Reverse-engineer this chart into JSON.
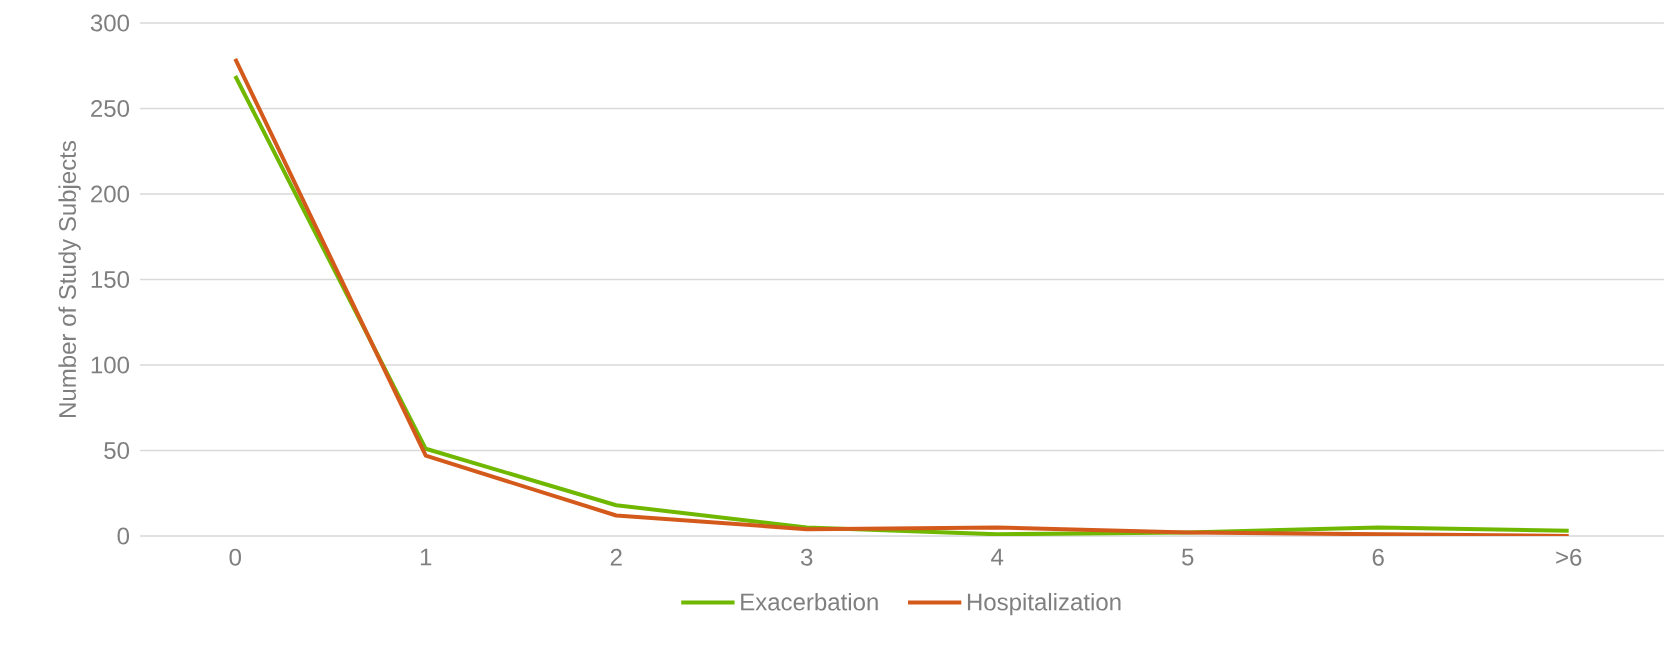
{
  "chart_data": {
    "type": "line",
    "ylabel": "Number of Study Subjects",
    "categories": [
      "0",
      "1",
      "2",
      "3",
      "4",
      "5",
      "6",
      ">6"
    ],
    "series": [
      {
        "name": "Exacerbation",
        "color": "#70b800",
        "values": [
          269,
          51,
          18,
          5,
          1,
          2,
          5,
          3
        ]
      },
      {
        "name": "Hospitalization",
        "color": "#d45a1c",
        "values": [
          279,
          47,
          12,
          4,
          5,
          2,
          1,
          0
        ]
      }
    ],
    "ylim": [
      0,
      300
    ],
    "yticks": [
      0,
      50,
      100,
      150,
      200,
      250,
      300
    ],
    "grid": "y",
    "legend": "bottom",
    "marker": "none",
    "line_style": "solid"
  }
}
